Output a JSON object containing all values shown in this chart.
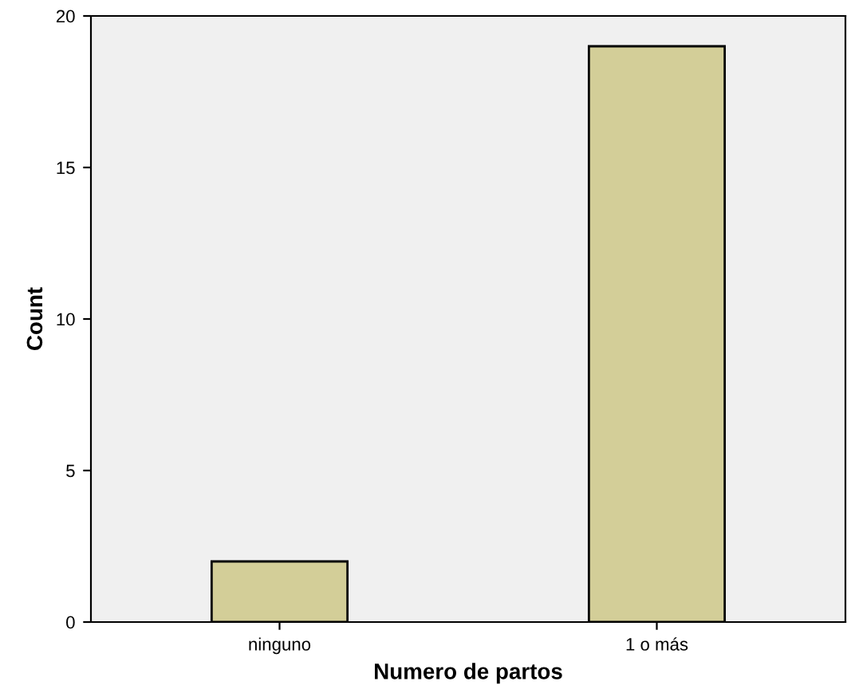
{
  "chart_data": {
    "type": "bar",
    "xlabel": "Numero de partos",
    "ylabel": "Count",
    "categories": [
      "ninguno",
      "1 o más"
    ],
    "values": [
      2,
      19
    ],
    "color": "#d3ce98",
    "ylim": [
      0,
      20
    ],
    "yticks": [
      0,
      5,
      10,
      15,
      20
    ],
    "grid": false
  }
}
